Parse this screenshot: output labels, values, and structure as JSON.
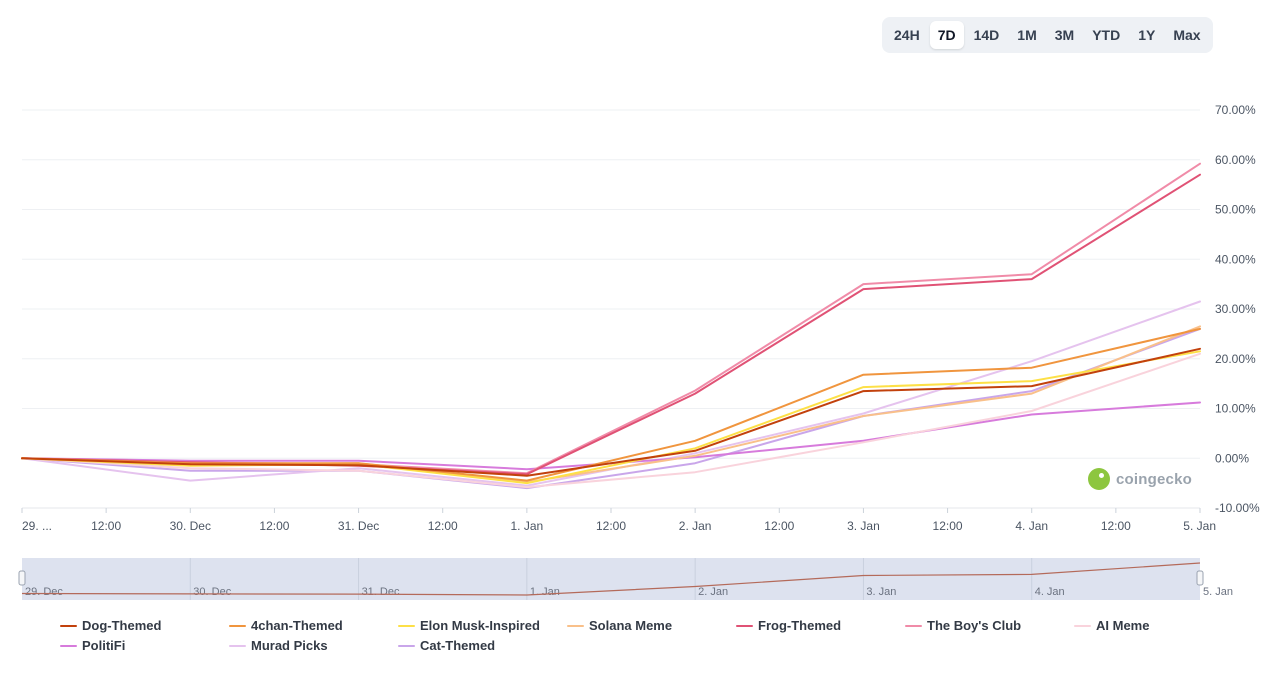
{
  "range_tabs": [
    {
      "label": "24H",
      "active": false
    },
    {
      "label": "7D",
      "active": true
    },
    {
      "label": "14D",
      "active": false
    },
    {
      "label": "1M",
      "active": false
    },
    {
      "label": "3M",
      "active": false
    },
    {
      "label": "YTD",
      "active": false
    },
    {
      "label": "1Y",
      "active": false
    },
    {
      "label": "Max",
      "active": false
    }
  ],
  "watermark": "coingecko",
  "chart_data": {
    "type": "line",
    "x": [
      "29. Dec",
      "30. Dec",
      "31. Dec",
      "1. Jan",
      "2. Jan",
      "3. Jan",
      "4. Jan",
      "5. Jan"
    ],
    "x_tick_labels": [
      "29. ...",
      "12:00",
      "30. Dec",
      "12:00",
      "31. Dec",
      "12:00",
      "1. Jan",
      "12:00",
      "2. Jan",
      "12:00",
      "3. Jan",
      "12:00",
      "4. Jan",
      "12:00",
      "5. Jan"
    ],
    "y_tick_labels": [
      "70.00%",
      "60.00%",
      "50.00%",
      "40.00%",
      "30.00%",
      "20.00%",
      "10.00%",
      "0.00%",
      "-10.00%"
    ],
    "ylim": [
      -10,
      70
    ],
    "y_unit": "%",
    "grid": true,
    "legend_position": "bottom",
    "navigator_labels": [
      "29. Dec",
      "30. Dec",
      "31. Dec",
      "1. Jan",
      "2. Jan",
      "3. Jan",
      "4. Jan",
      "5. Jan"
    ],
    "series": [
      {
        "name": "Dog-Themed",
        "color": "#c2410c",
        "values": [
          0,
          -1.2,
          -1.4,
          -3.5,
          1.5,
          13.5,
          14.5,
          22
        ]
      },
      {
        "name": "4chan-Themed",
        "color": "#f0953e",
        "values": [
          0,
          -1.0,
          -1.0,
          -4.5,
          3.5,
          16.8,
          18.2,
          26
        ]
      },
      {
        "name": "Elon Musk-Inspired",
        "color": "#fde047",
        "values": [
          0,
          -1.5,
          -1.2,
          -5.0,
          2.0,
          14.3,
          15.5,
          21.5
        ]
      },
      {
        "name": "Solana Meme",
        "color": "#f9c08a",
        "values": [
          0,
          -1.3,
          -1.0,
          -4.8,
          0.5,
          8.5,
          13.0,
          26.5
        ]
      },
      {
        "name": "Frog-Themed",
        "color": "#e05275",
        "values": [
          0,
          -0.8,
          -1.5,
          -3.2,
          13.0,
          34.0,
          36.0,
          57.0
        ]
      },
      {
        "name": "The Boy's Club",
        "color": "#f08ba8",
        "values": [
          0,
          -0.8,
          -1.2,
          -3.0,
          13.6,
          35.0,
          37.0,
          59.2
        ]
      },
      {
        "name": "AI Meme",
        "color": "#f9d3dc",
        "values": [
          0,
          -2.0,
          -2.5,
          -5.8,
          -2.8,
          3.2,
          9.5,
          21.0
        ]
      },
      {
        "name": "PolitiFi",
        "color": "#d77bdc",
        "values": [
          0,
          -0.5,
          -0.5,
          -2.2,
          0.2,
          3.5,
          8.8,
          11.2
        ]
      },
      {
        "name": "Murad Picks",
        "color": "#e5c3ee",
        "values": [
          0,
          -4.5,
          -2.0,
          -5.5,
          1.0,
          9.0,
          19.5,
          31.5
        ]
      },
      {
        "name": "Cat-Themed",
        "color": "#c9a6ea",
        "values": [
          0,
          -2.5,
          -2.5,
          -6.0,
          -1.0,
          8.5,
          13.5,
          26.0
        ]
      }
    ]
  }
}
